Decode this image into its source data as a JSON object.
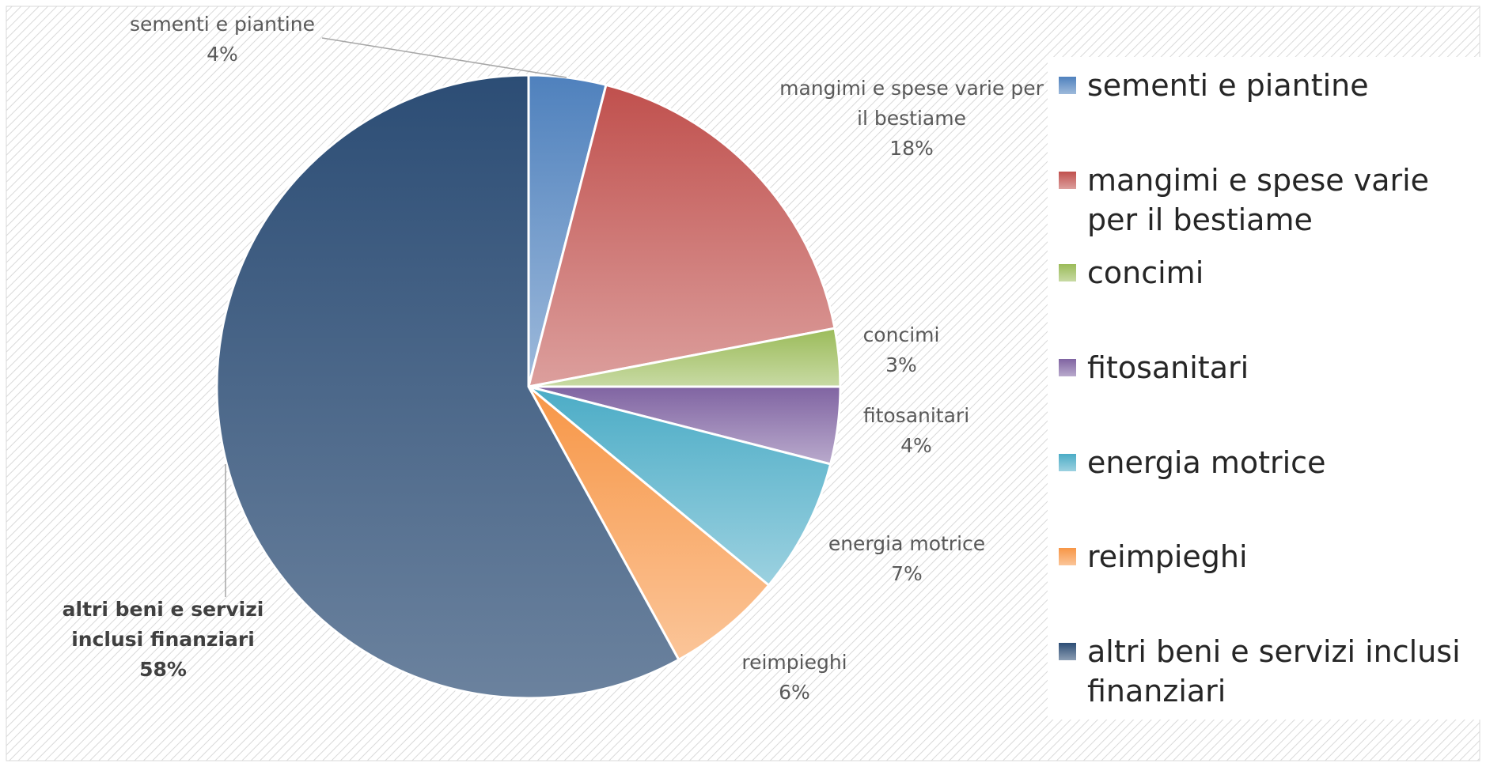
{
  "chart_data": {
    "type": "pie",
    "categories": [
      "sementi e piantine",
      "mangimi e spese varie per il bestiame",
      "concimi",
      "fitosanitari",
      "energia motrice",
      "reimpieghi",
      "altri beni e servizi inclusi finanziari"
    ],
    "values": [
      4,
      18,
      3,
      4,
      7,
      6,
      58
    ],
    "value_labels": [
      "4%",
      "18%",
      "3%",
      "4%",
      "7%",
      "6%",
      "58%"
    ],
    "colors": [
      "#4f81bd",
      "#c0504d",
      "#9bbb59",
      "#8064a2",
      "#4bacc6",
      "#f79646",
      "#2c4d75"
    ],
    "legend": "right"
  }
}
